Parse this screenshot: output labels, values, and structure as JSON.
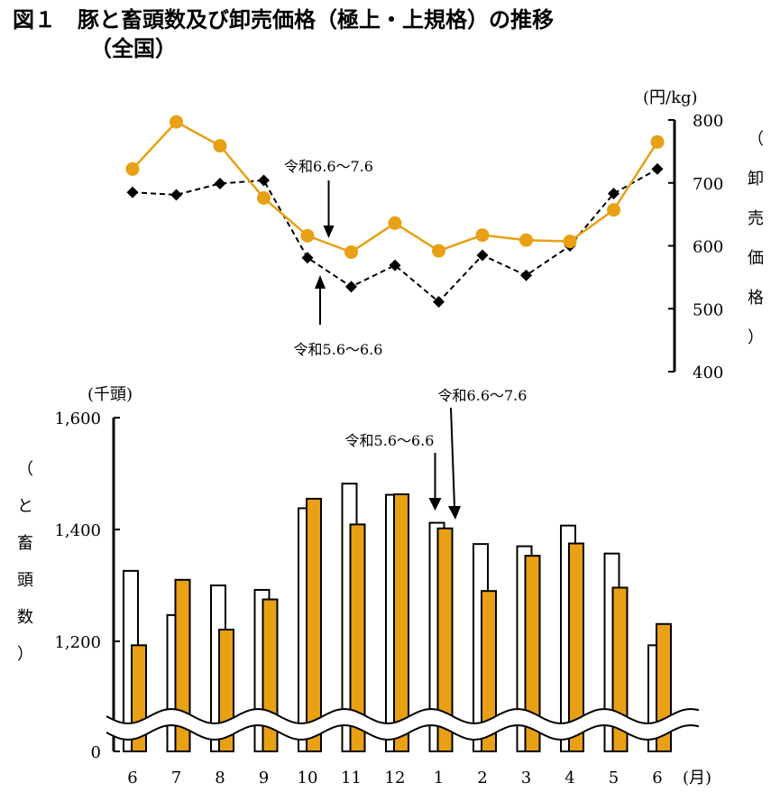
{
  "title": {
    "line1": "図１　豚と畜頭数及び卸売価格（極上・上規格）の推移",
    "line2": "（全国）"
  },
  "colors": {
    "orange": "#E8A015",
    "black": "#000000"
  },
  "chart_data": [
    {
      "type": "line",
      "categories": [
        "6",
        "7",
        "8",
        "9",
        "10",
        "11",
        "12",
        "1",
        "2",
        "3",
        "4",
        "5",
        "6"
      ],
      "y_unit": "(円/kg)",
      "ylabel": [
        "（",
        "卸",
        "売",
        "価",
        "格",
        "）"
      ],
      "ylim": [
        400,
        800
      ],
      "yticks": [
        "800",
        "700",
        "600",
        "500",
        "400"
      ],
      "series": [
        {
          "color": "#E8A015",
          "marker": "circle",
          "style": "solid",
          "values": [
            722,
            797,
            759,
            676,
            616,
            590,
            636,
            592,
            617,
            609,
            607,
            657,
            765
          ]
        },
        {
          "color": "#000000",
          "marker": "diamond",
          "style": "dashed",
          "values": [
            685,
            681,
            699,
            704,
            581,
            535,
            569,
            511,
            585,
            553,
            600,
            683,
            722
          ]
        }
      ],
      "annotations": [
        {
          "text": "令和6.6～7.6",
          "target_index": 5,
          "arrow": "down"
        },
        {
          "text": "令和5.6～6.6",
          "target_index": 4,
          "arrow": "up"
        }
      ]
    },
    {
      "type": "bar",
      "categories": [
        "6",
        "7",
        "8",
        "9",
        "10",
        "11",
        "12",
        "1",
        "2",
        "3",
        "4",
        "5",
        "6"
      ],
      "x_unit": "(月)",
      "y_unit": "(千頭)",
      "ylabel": [
        "（",
        "と",
        "畜",
        "頭",
        "数",
        "）"
      ],
      "ylim": [
        1000,
        1600
      ],
      "yticks": [
        "1,600",
        "1,400",
        "1,200",
        "0"
      ],
      "axis_break": true,
      "series": [
        {
          "fill": "#FFFFFF",
          "stroke": "#000000",
          "values": [
            1326,
            1247,
            1300,
            1292,
            1438,
            1482,
            1462,
            1412,
            1374,
            1370,
            1407,
            1357,
            1193
          ]
        },
        {
          "fill": "#E8A015",
          "stroke": "#000000",
          "values": [
            1193,
            1310,
            1221,
            1275,
            1455,
            1409,
            1463,
            1402,
            1290,
            1353,
            1375,
            1296,
            1231
          ]
        }
      ],
      "annotations": [
        {
          "text": "令和5.6～6.6",
          "target_index": 7,
          "series": 0
        },
        {
          "text": "令和6.6～7.6",
          "target_index": 7,
          "series": 1
        }
      ]
    }
  ]
}
